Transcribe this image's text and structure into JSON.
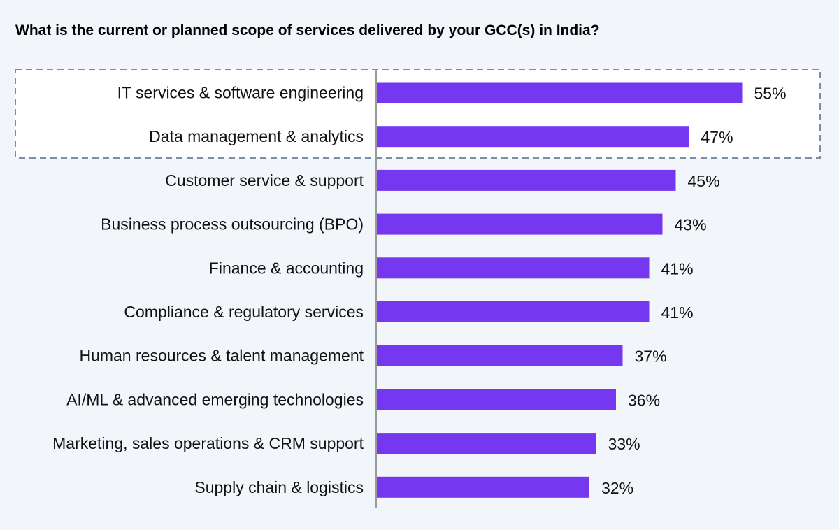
{
  "chart_data": {
    "type": "bar",
    "orientation": "horizontal",
    "title": "What is the current or planned scope of services delivered by your GCC(s) in India?",
    "xlabel": "",
    "ylabel": "",
    "unit": "%",
    "xlim": [
      0,
      60
    ],
    "grid": false,
    "bar_color": "#7538f0",
    "highlight_box": {
      "categories": [
        "IT services & software engineering",
        "Data management & analytics"
      ],
      "style": "dashed"
    },
    "categories": [
      "IT services & software engineering",
      "Data management & analytics",
      "Customer service & support",
      "Business process outsourcing (BPO)",
      "Finance & accounting",
      "Compliance & regulatory services",
      "Human resources & talent management",
      "AI/ML & advanced emerging technologies",
      "Marketing, sales operations & CRM support",
      "Supply chain & logistics"
    ],
    "values": [
      55,
      47,
      45,
      43,
      41,
      41,
      37,
      36,
      33,
      32
    ],
    "value_labels": [
      "55%",
      "47%",
      "45%",
      "43%",
      "41%",
      "41%",
      "37%",
      "36%",
      "33%",
      "32%"
    ]
  }
}
